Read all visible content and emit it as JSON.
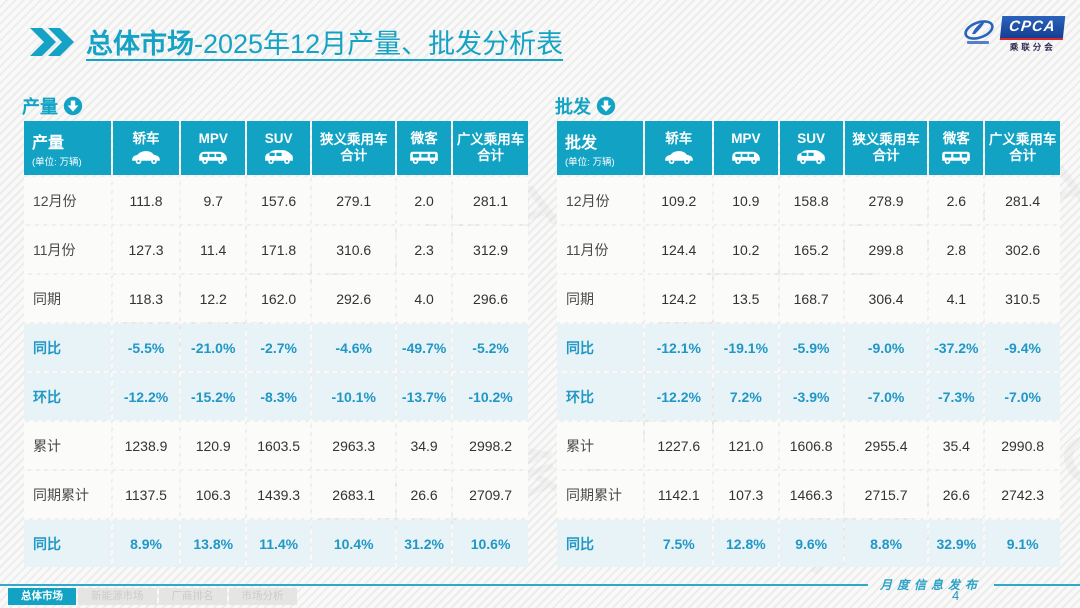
{
  "page": {
    "title_prefix": "总体市场",
    "title_suffix": "-2025年12月产量、批发分析表",
    "footer_note": "月度信息发布",
    "page_number": "4"
  },
  "logo": {
    "abbr": "CPCA",
    "name": "乘联分会"
  },
  "watermark": {
    "text": "乘联分会 CPCA"
  },
  "columns": [
    {
      "label": "轿车",
      "icon": "sedan-icon"
    },
    {
      "label": "MPV",
      "icon": "mpv-icon"
    },
    {
      "label": "SUV",
      "icon": "suv-icon"
    },
    {
      "label": "狭义乘用车合计",
      "icon": null
    },
    {
      "label": "微客",
      "icon": "microvan-icon"
    },
    {
      "label": "广义乘用车合计",
      "icon": null
    }
  ],
  "production": {
    "section_label": "产量",
    "unit": "(单位: 万辆)",
    "rows": [
      {
        "label": "12月份",
        "type": "normal",
        "values": [
          "111.8",
          "9.7",
          "157.6",
          "279.1",
          "2.0",
          "281.1"
        ]
      },
      {
        "label": "11月份",
        "type": "normal",
        "values": [
          "127.3",
          "11.4",
          "171.8",
          "310.6",
          "2.3",
          "312.9"
        ]
      },
      {
        "label": "同期",
        "type": "normal",
        "values": [
          "118.3",
          "12.2",
          "162.0",
          "292.6",
          "4.0",
          "296.6"
        ]
      },
      {
        "label": "同比",
        "type": "percent",
        "values": [
          "-5.5%",
          "-21.0%",
          "-2.7%",
          "-4.6%",
          "-49.7%",
          "-5.2%"
        ]
      },
      {
        "label": "环比",
        "type": "percent",
        "values": [
          "-12.2%",
          "-15.2%",
          "-8.3%",
          "-10.1%",
          "-13.7%",
          "-10.2%"
        ]
      },
      {
        "label": "累计",
        "type": "normal",
        "values": [
          "1238.9",
          "120.9",
          "1603.5",
          "2963.3",
          "34.9",
          "2998.2"
        ]
      },
      {
        "label": "同期累计",
        "type": "normal",
        "values": [
          "1137.5",
          "106.3",
          "1439.3",
          "2683.1",
          "26.6",
          "2709.7"
        ]
      },
      {
        "label": "同比",
        "type": "percent",
        "values": [
          "8.9%",
          "13.8%",
          "11.4%",
          "10.4%",
          "31.2%",
          "10.6%"
        ]
      }
    ]
  },
  "wholesale": {
    "section_label": "批发",
    "unit": "(单位: 万辆)",
    "rows": [
      {
        "label": "12月份",
        "type": "normal",
        "values": [
          "109.2",
          "10.9",
          "158.8",
          "278.9",
          "2.6",
          "281.4"
        ]
      },
      {
        "label": "11月份",
        "type": "normal",
        "values": [
          "124.4",
          "10.2",
          "165.2",
          "299.8",
          "2.8",
          "302.6"
        ]
      },
      {
        "label": "同期",
        "type": "normal",
        "values": [
          "124.2",
          "13.5",
          "168.7",
          "306.4",
          "4.1",
          "310.5"
        ]
      },
      {
        "label": "同比",
        "type": "percent",
        "values": [
          "-12.1%",
          "-19.1%",
          "-5.9%",
          "-9.0%",
          "-37.2%",
          "-9.4%"
        ]
      },
      {
        "label": "环比",
        "type": "percent",
        "values": [
          "-12.2%",
          "7.2%",
          "-3.9%",
          "-7.0%",
          "-7.3%",
          "-7.0%"
        ]
      },
      {
        "label": "累计",
        "type": "normal",
        "values": [
          "1227.6",
          "121.0",
          "1606.8",
          "2955.4",
          "35.4",
          "2990.8"
        ]
      },
      {
        "label": "同期累计",
        "type": "normal",
        "values": [
          "1142.1",
          "107.3",
          "1466.3",
          "2715.7",
          "26.6",
          "2742.3"
        ]
      },
      {
        "label": "同比",
        "type": "percent",
        "values": [
          "7.5%",
          "12.8%",
          "9.6%",
          "8.8%",
          "32.9%",
          "9.1%"
        ]
      }
    ]
  },
  "nav": {
    "tabs": [
      {
        "label": "总体市场",
        "active": true
      },
      {
        "label": "新能源市场",
        "active": false
      },
      {
        "label": "厂商排名",
        "active": false
      },
      {
        "label": "市场分析",
        "active": false
      }
    ]
  },
  "colors": {
    "accent_teal": "#12a3c4",
    "percent_row_bg": "#e8f3f8",
    "percent_text": "#2097c4",
    "logo_blue": "#1b55ad",
    "logo_red": "#d8262b"
  }
}
